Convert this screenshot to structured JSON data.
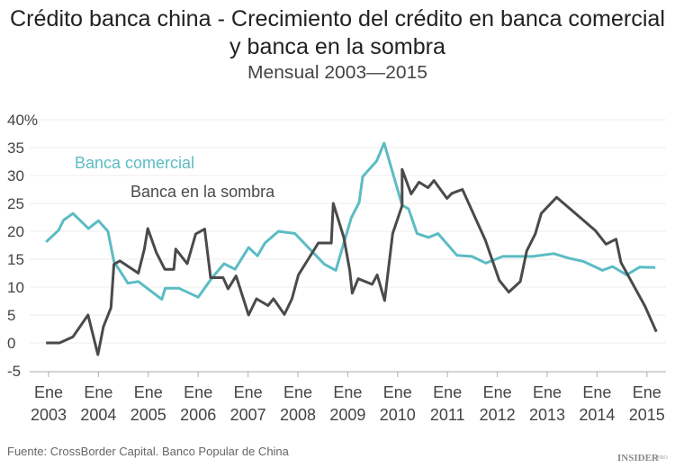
{
  "chart_data": {
    "type": "line",
    "title_line1": "Crédito banca china - Crecimiento del crédito en banca comercial",
    "title_line2": "y banca en la sombra",
    "subtitle": "Mensual 2003—2015",
    "ylim": [
      -5,
      40
    ],
    "yticks": [
      40,
      35,
      30,
      25,
      20,
      15,
      10,
      5,
      0,
      -5
    ],
    "ytick_labels": [
      "40%",
      "35",
      "30",
      "25",
      "20",
      "15",
      "10",
      "5",
      "0",
      "-5"
    ],
    "xlim": [
      2002.9,
      2015.4
    ],
    "xticks": [
      {
        "year": 2003,
        "month": "Ene",
        "label": "2003"
      },
      {
        "year": 2004,
        "month": "Ene",
        "label": "2004"
      },
      {
        "year": 2005,
        "month": "Ene",
        "label": "2005"
      },
      {
        "year": 2006,
        "month": "Ene",
        "label": "2006"
      },
      {
        "year": 2007,
        "month": "Ene",
        "label": "2007"
      },
      {
        "year": 2008,
        "month": "Ene",
        "label": "2008"
      },
      {
        "year": 2009,
        "month": "Ene",
        "label": "2009"
      },
      {
        "year": 2010,
        "month": "Ene",
        "label": "2010"
      },
      {
        "year": 2011,
        "month": "Ene",
        "label": "2011"
      },
      {
        "year": 2012,
        "month": "Ene",
        "label": "2012"
      },
      {
        "year": 2013,
        "month": "Ene",
        "label": "2013"
      },
      {
        "year": 2014,
        "month": "Ene",
        "label": "2014"
      },
      {
        "year": 2015,
        "month": "Ene",
        "label": "2015"
      }
    ],
    "grid": true,
    "series": [
      {
        "name": "Banca comercial",
        "color": "#5bbcc3",
        "points": [
          [
            2002.95,
            18.1
          ],
          [
            2003.2,
            20.2
          ],
          [
            2003.3,
            22.0
          ],
          [
            2003.49,
            23.2
          ],
          [
            2003.8,
            20.5
          ],
          [
            2004.0,
            21.9
          ],
          [
            2004.19,
            20.0
          ],
          [
            2004.31,
            14.6
          ],
          [
            2004.59,
            10.7
          ],
          [
            2004.8,
            11.0
          ],
          [
            2005.27,
            7.8
          ],
          [
            2005.34,
            9.8
          ],
          [
            2005.61,
            9.8
          ],
          [
            2006.0,
            8.2
          ],
          [
            2006.28,
            11.7
          ],
          [
            2006.52,
            14.2
          ],
          [
            2006.74,
            13.2
          ],
          [
            2007.01,
            17.1
          ],
          [
            2007.19,
            15.6
          ],
          [
            2007.34,
            17.9
          ],
          [
            2007.61,
            20.0
          ],
          [
            2007.94,
            19.6
          ],
          [
            2008.24,
            16.8
          ],
          [
            2008.53,
            14.1
          ],
          [
            2008.76,
            13.0
          ],
          [
            2009.07,
            22.4
          ],
          [
            2009.23,
            25.2
          ],
          [
            2009.3,
            29.8
          ],
          [
            2009.58,
            32.6
          ],
          [
            2009.73,
            35.8
          ],
          [
            2010.09,
            24.7
          ],
          [
            2010.22,
            24.0
          ],
          [
            2010.39,
            19.6
          ],
          [
            2010.62,
            18.9
          ],
          [
            2010.81,
            19.6
          ],
          [
            2011.19,
            15.7
          ],
          [
            2011.49,
            15.5
          ],
          [
            2011.77,
            14.3
          ],
          [
            2012.11,
            15.5
          ],
          [
            2012.71,
            15.5
          ],
          [
            2013.13,
            16.0
          ],
          [
            2013.43,
            15.2
          ],
          [
            2013.73,
            14.6
          ],
          [
            2014.11,
            13.0
          ],
          [
            2014.31,
            13.7
          ],
          [
            2014.59,
            12.2
          ],
          [
            2014.86,
            13.6
          ],
          [
            2015.17,
            13.5
          ]
        ]
      },
      {
        "name": "Banca en la sombra",
        "color": "#4a4a4a",
        "points": [
          [
            2002.95,
            0
          ],
          [
            2003.22,
            0
          ],
          [
            2003.49,
            1.1
          ],
          [
            2003.79,
            5.0
          ],
          [
            2003.99,
            -2.1
          ],
          [
            2004.1,
            2.9
          ],
          [
            2004.25,
            6.3
          ],
          [
            2004.31,
            14.1
          ],
          [
            2004.43,
            14.7
          ],
          [
            2004.8,
            12.5
          ],
          [
            2004.92,
            16.8
          ],
          [
            2004.99,
            20.5
          ],
          [
            2005.16,
            16.2
          ],
          [
            2005.33,
            13.2
          ],
          [
            2005.51,
            13.2
          ],
          [
            2005.55,
            16.8
          ],
          [
            2005.78,
            14.2
          ],
          [
            2005.95,
            19.5
          ],
          [
            2006.13,
            20.4
          ],
          [
            2006.25,
            11.7
          ],
          [
            2006.5,
            11.7
          ],
          [
            2006.6,
            9.7
          ],
          [
            2006.76,
            12.0
          ],
          [
            2007.01,
            5.0
          ],
          [
            2007.17,
            7.9
          ],
          [
            2007.4,
            6.7
          ],
          [
            2007.51,
            7.9
          ],
          [
            2007.73,
            5.1
          ],
          [
            2007.88,
            7.9
          ],
          [
            2008.01,
            12.2
          ],
          [
            2008.41,
            17.9
          ],
          [
            2008.67,
            17.9
          ],
          [
            2008.71,
            25.0
          ],
          [
            2008.92,
            18.9
          ],
          [
            2009.04,
            13.0
          ],
          [
            2009.09,
            8.9
          ],
          [
            2009.21,
            11.5
          ],
          [
            2009.49,
            10.5
          ],
          [
            2009.59,
            12.2
          ],
          [
            2009.74,
            7.6
          ],
          [
            2009.9,
            19.6
          ],
          [
            2010.09,
            24.6
          ],
          [
            2010.09,
            31.1
          ],
          [
            2010.27,
            26.7
          ],
          [
            2010.43,
            28.8
          ],
          [
            2010.61,
            27.8
          ],
          [
            2010.73,
            29.1
          ],
          [
            2010.99,
            25.9
          ],
          [
            2011.09,
            26.8
          ],
          [
            2011.3,
            27.5
          ],
          [
            2011.76,
            18.4
          ],
          [
            2012.04,
            11.2
          ],
          [
            2012.23,
            9.1
          ],
          [
            2012.46,
            11.0
          ],
          [
            2012.59,
            16.5
          ],
          [
            2012.76,
            19.5
          ],
          [
            2012.88,
            23.2
          ],
          [
            2013.19,
            26.1
          ],
          [
            2013.97,
            20.1
          ],
          [
            2014.18,
            17.7
          ],
          [
            2014.38,
            18.6
          ],
          [
            2014.48,
            14.4
          ],
          [
            2014.96,
            6.6
          ],
          [
            2015.19,
            2.0
          ]
        ]
      }
    ],
    "legend": {
      "placement": "inline-top-left"
    }
  },
  "footer": {
    "source": "Fuente: CrossBorder Capital. Banco Popular de China",
    "logo": "INSIDER PRO"
  }
}
